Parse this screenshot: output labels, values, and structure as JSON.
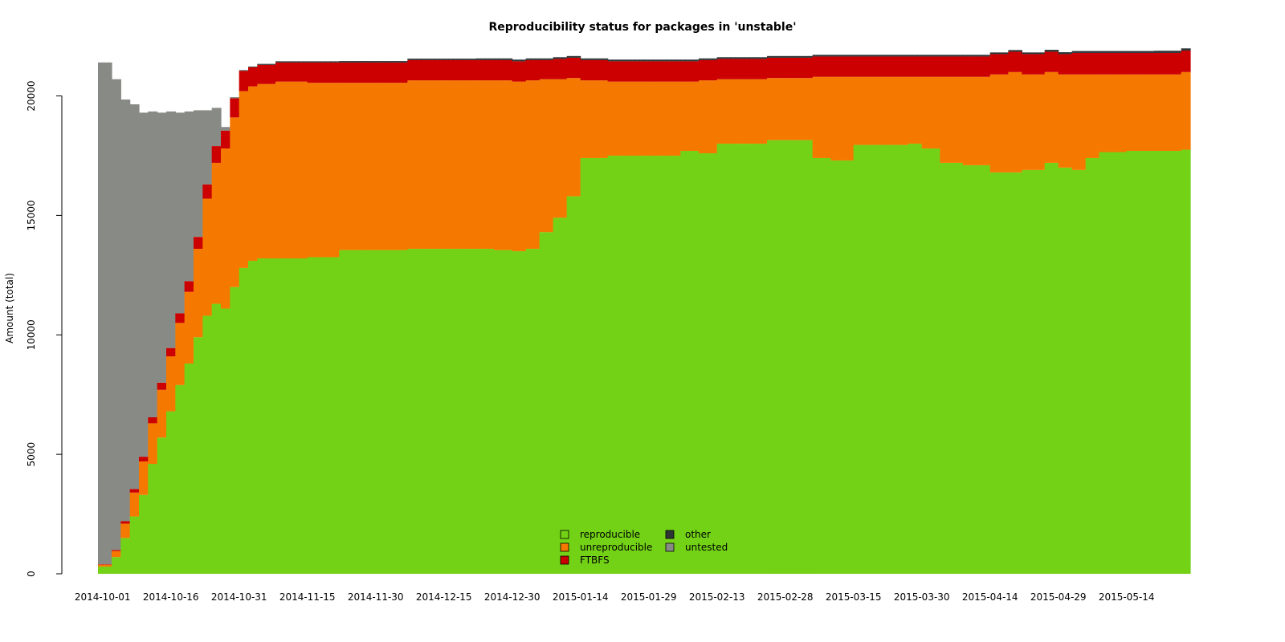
{
  "chart_data": {
    "type": "area",
    "title": "Reproducibility status for packages in 'unstable'",
    "xlabel": "",
    "ylabel": "Amount (total)",
    "xlim": [
      "2014-09-30",
      "2015-05-28"
    ],
    "ylim": [
      0,
      22000
    ],
    "yticks": [
      0,
      5000,
      10000,
      15000,
      20000
    ],
    "xticks": [
      "2014-10-01",
      "2014-10-16",
      "2014-10-31",
      "2014-11-15",
      "2014-11-30",
      "2014-12-15",
      "2014-12-30",
      "2015-01-14",
      "2015-01-29",
      "2015-02-13",
      "2015-02-28",
      "2015-03-15",
      "2015-03-30",
      "2015-04-14",
      "2015-04-29",
      "2015-05-14"
    ],
    "grid": false,
    "stacked": true,
    "legend_position": "bottom-center",
    "x": [
      "2014-10-01",
      "2014-10-03",
      "2014-10-05",
      "2014-10-07",
      "2014-10-09",
      "2014-10-11",
      "2014-10-13",
      "2014-10-15",
      "2014-10-17",
      "2014-10-19",
      "2014-10-21",
      "2014-10-23",
      "2014-10-25",
      "2014-10-27",
      "2014-10-29",
      "2014-10-31",
      "2014-11-02",
      "2014-11-04",
      "2014-11-08",
      "2014-11-15",
      "2014-11-22",
      "2014-11-30",
      "2014-12-07",
      "2014-12-15",
      "2014-12-22",
      "2014-12-26",
      "2014-12-30",
      "2015-01-02",
      "2015-01-05",
      "2015-01-08",
      "2015-01-11",
      "2015-01-14",
      "2015-01-20",
      "2015-01-29",
      "2015-02-05",
      "2015-02-09",
      "2015-02-13",
      "2015-02-20",
      "2015-02-24",
      "2015-02-28",
      "2015-03-06",
      "2015-03-10",
      "2015-03-15",
      "2015-03-22",
      "2015-03-27",
      "2015-03-30",
      "2015-04-03",
      "2015-04-08",
      "2015-04-14",
      "2015-04-18",
      "2015-04-21",
      "2015-04-26",
      "2015-04-29",
      "2015-05-02",
      "2015-05-05",
      "2015-05-08",
      "2015-05-14",
      "2015-05-20",
      "2015-05-26",
      "2015-05-28"
    ],
    "series": [
      {
        "name": "reproducible",
        "color": "#73d216",
        "values": [
          300,
          700,
          1500,
          2400,
          3300,
          4600,
          5700,
          6800,
          7900,
          8800,
          9900,
          10800,
          11300,
          11100,
          12000,
          12800,
          13100,
          13200,
          13200,
          13250,
          13550,
          13550,
          13600,
          13600,
          13600,
          13550,
          13500,
          13600,
          14300,
          14900,
          15800,
          17400,
          17500,
          17500,
          17700,
          17600,
          18000,
          18000,
          18150,
          18150,
          17400,
          17300,
          17950,
          17950,
          18000,
          17800,
          17200,
          17100,
          16800,
          16800,
          16900,
          17200,
          17000,
          16900,
          17400,
          17650,
          17700,
          17700,
          17750,
          17700
        ]
      },
      {
        "name": "unreproducible",
        "color": "#f57900",
        "values": [
          80,
          250,
          600,
          1000,
          1400,
          1700,
          2000,
          2300,
          2600,
          3000,
          3700,
          4900,
          5900,
          6700,
          7100,
          7400,
          7300,
          7300,
          7400,
          7300,
          7000,
          7000,
          7050,
          7050,
          7050,
          7100,
          7100,
          7050,
          6400,
          5800,
          4950,
          3250,
          3100,
          3100,
          2900,
          3050,
          2700,
          2700,
          2600,
          2600,
          3400,
          3500,
          2850,
          2850,
          2800,
          3000,
          3600,
          3700,
          4100,
          4200,
          4000,
          3800,
          3900,
          4000,
          3500,
          3250,
          3200,
          3200,
          3250,
          3100
        ]
      },
      {
        "name": "FTBFS",
        "color": "#cc0000",
        "values": [
          20,
          50,
          100,
          150,
          200,
          250,
          300,
          350,
          400,
          450,
          500,
          600,
          700,
          750,
          800,
          850,
          800,
          800,
          800,
          850,
          850,
          850,
          850,
          850,
          850,
          850,
          850,
          850,
          800,
          850,
          850,
          850,
          850,
          850,
          850,
          850,
          850,
          850,
          850,
          850,
          850,
          850,
          850,
          850,
          850,
          850,
          850,
          850,
          850,
          850,
          850,
          850,
          850,
          900,
          900,
          900,
          900,
          900,
          900,
          900
        ]
      },
      {
        "name": "other",
        "color": "#2e3436",
        "values": [
          0,
          0,
          0,
          0,
          0,
          0,
          0,
          0,
          0,
          0,
          0,
          0,
          0,
          0,
          10,
          20,
          30,
          40,
          50,
          50,
          60,
          60,
          60,
          60,
          70,
          70,
          70,
          70,
          70,
          70,
          70,
          70,
          70,
          70,
          70,
          70,
          70,
          70,
          70,
          70,
          70,
          70,
          70,
          70,
          70,
          70,
          70,
          70,
          70,
          70,
          70,
          80,
          80,
          80,
          80,
          80,
          80,
          90,
          90,
          200
        ]
      },
      {
        "name": "untested",
        "color": "#888a85",
        "values": [
          21000,
          19700,
          17650,
          16100,
          14400,
          12800,
          11300,
          9900,
          8400,
          7100,
          5300,
          3100,
          1600,
          150,
          40,
          20,
          0,
          0,
          0,
          0,
          0,
          0,
          0,
          0,
          0,
          0,
          0,
          0,
          0,
          0,
          0,
          0,
          0,
          0,
          0,
          0,
          0,
          0,
          0,
          0,
          0,
          0,
          0,
          0,
          0,
          0,
          0,
          0,
          0,
          0,
          0,
          0,
          0,
          0,
          0,
          0,
          0,
          0,
          0,
          200
        ]
      }
    ]
  }
}
